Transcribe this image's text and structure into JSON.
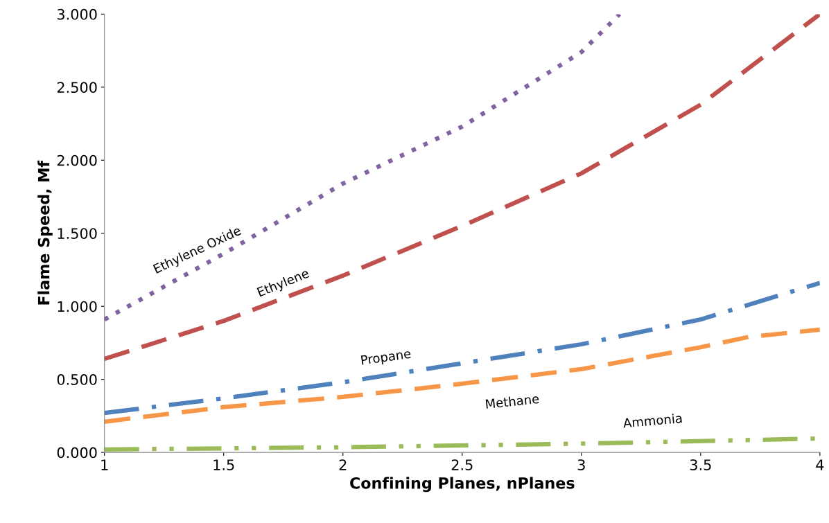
{
  "chart_data": {
    "type": "line",
    "xlabel": "Confining Planes, nPlanes",
    "ylabel": "Flame Speed, Mf",
    "xlim": [
      1,
      4
    ],
    "xticks": [
      1,
      1.5,
      2,
      2.5,
      3,
      3.5,
      4
    ],
    "ylim": [
      0,
      3
    ],
    "yticks": [
      {
        "value": 0,
        "label": "0.000"
      },
      {
        "value": 0.5,
        "label": "0.500"
      },
      {
        "value": 1,
        "label": "1.000"
      },
      {
        "value": 1.5,
        "label": "1.500"
      },
      {
        "value": 2,
        "label": "2.000"
      },
      {
        "value": 2.5,
        "label": "2.500"
      },
      {
        "value": 3,
        "label": "3.000"
      }
    ],
    "grid": false,
    "legend": false,
    "marker": "none",
    "series": [
      {
        "name": "Ethylene Oxide",
        "color": "#8064a2",
        "line_style": "dotted",
        "x": [
          1,
          1.5,
          2,
          2.5,
          3,
          3.16
        ],
        "values": [
          0.91,
          1.36,
          1.84,
          2.23,
          2.74,
          3.0
        ]
      },
      {
        "name": "Ethylene",
        "color": "#c0504d",
        "line_style": "dashed",
        "x": [
          1,
          1.5,
          2,
          2.5,
          3,
          3.5,
          4
        ],
        "values": [
          0.64,
          0.9,
          1.21,
          1.55,
          1.91,
          2.38,
          3.0
        ]
      },
      {
        "name": "Propane",
        "color": "#4f81bd",
        "line_style": "dashdot",
        "x": [
          1,
          1.5,
          2,
          2.5,
          3,
          3.5,
          4
        ],
        "values": [
          0.27,
          0.37,
          0.48,
          0.61,
          0.74,
          0.91,
          1.16
        ]
      },
      {
        "name": "Methane",
        "color": "#f79646",
        "line_style": "dashed",
        "x": [
          1,
          1.5,
          2,
          2.5,
          3,
          3.5,
          3.7,
          4
        ],
        "values": [
          0.21,
          0.31,
          0.38,
          0.47,
          0.57,
          0.72,
          0.79,
          0.84
        ]
      },
      {
        "name": "Ammonia",
        "color": "#9bbb59",
        "line_style": "dashdotdot",
        "x": [
          1,
          2,
          3,
          4
        ],
        "values": [
          0.02,
          0.035,
          0.06,
          0.095
        ]
      }
    ]
  }
}
